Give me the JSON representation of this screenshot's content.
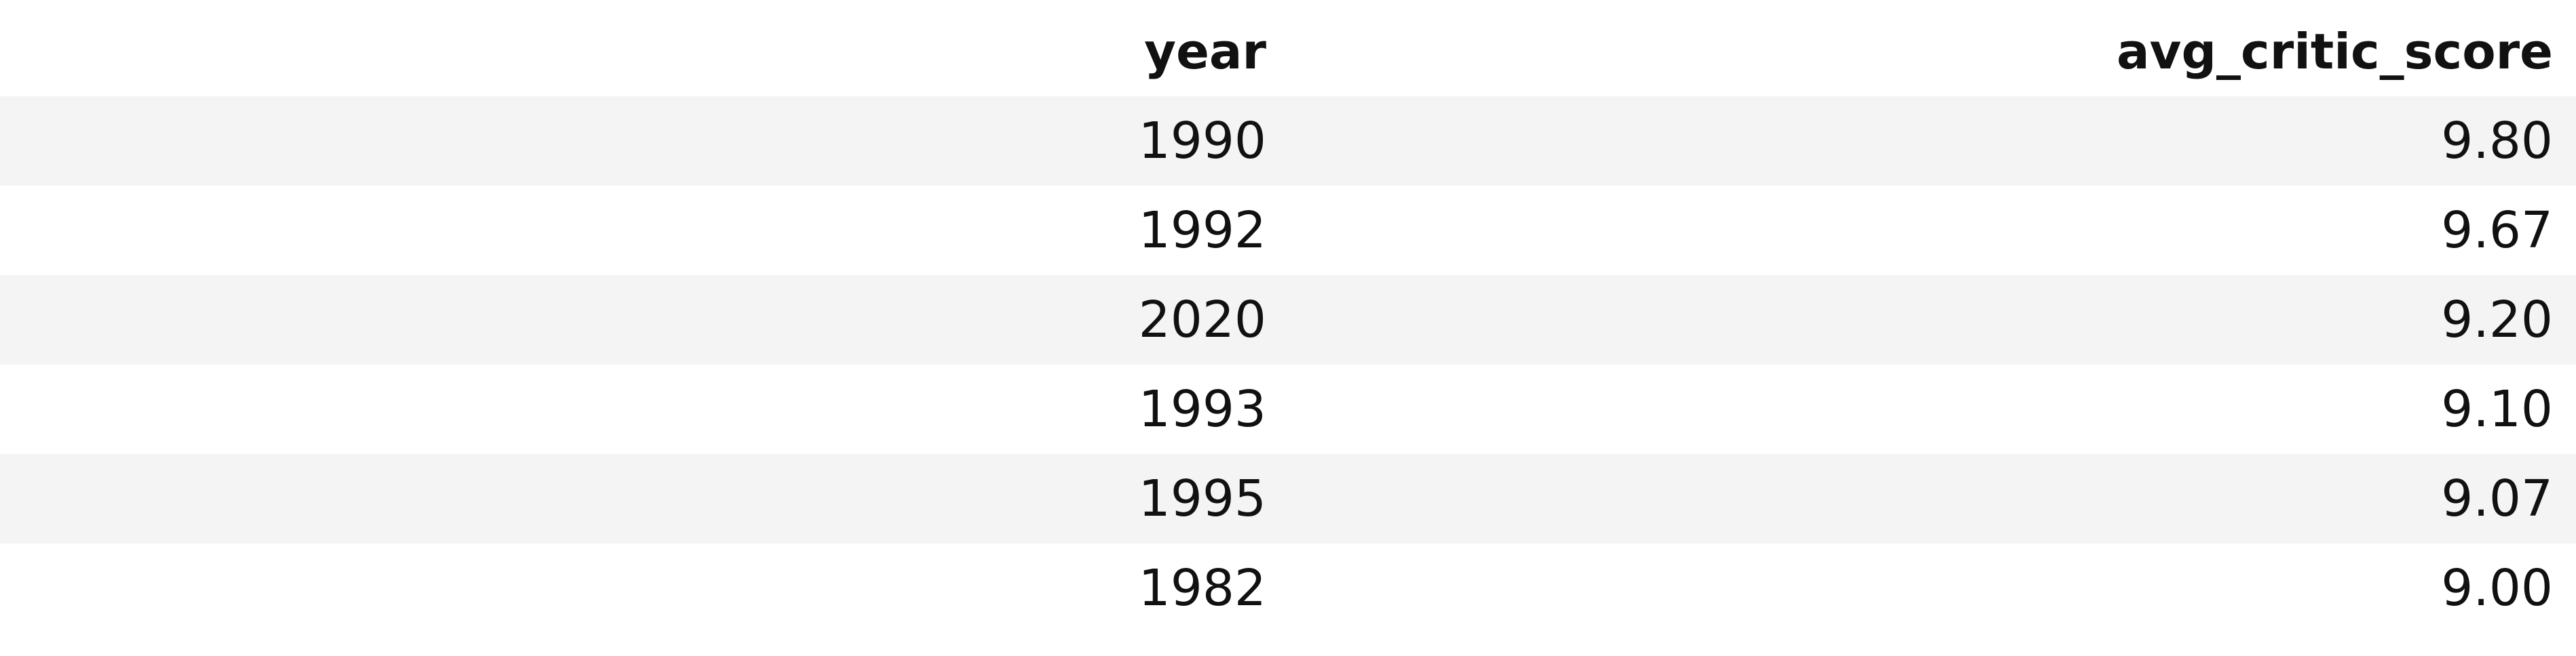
{
  "table": {
    "columns": [
      "year",
      "avg_critic_score"
    ],
    "rows": [
      [
        "1990",
        "9.80"
      ],
      [
        "1992",
        "9.67"
      ],
      [
        "2020",
        "9.20"
      ],
      [
        "1993",
        "9.10"
      ],
      [
        "1995",
        "9.07"
      ],
      [
        "1982",
        "9.00"
      ]
    ]
  },
  "colors": {
    "stripe": "#f4f4f4",
    "background": "#ffffff",
    "text": "#111111"
  }
}
